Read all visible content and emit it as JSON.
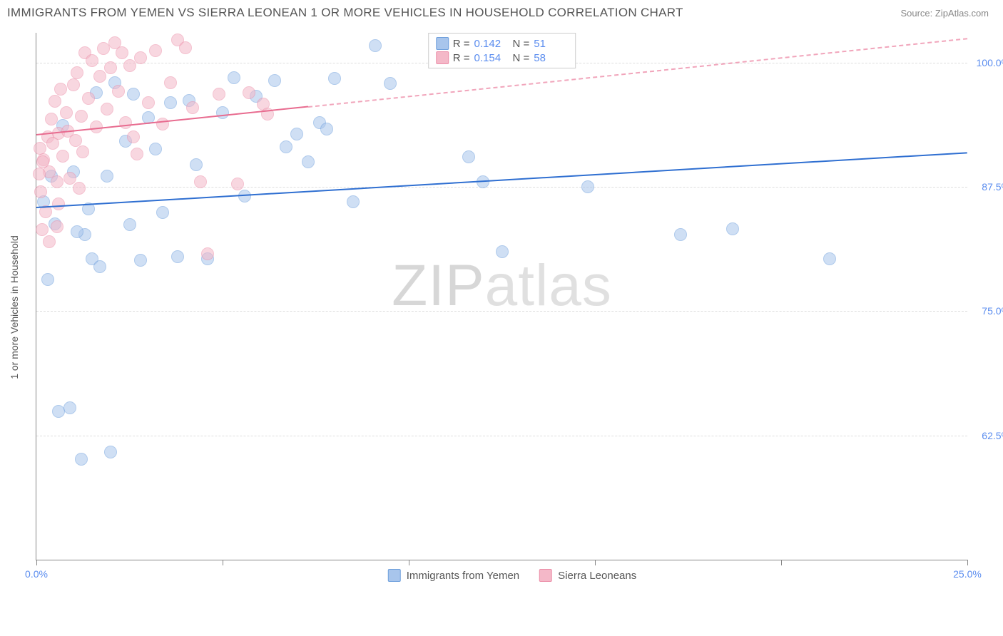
{
  "header": {
    "title": "IMMIGRANTS FROM YEMEN VS SIERRA LEONEAN 1 OR MORE VEHICLES IN HOUSEHOLD CORRELATION CHART",
    "source": "Source: ZipAtlas.com"
  },
  "watermark": {
    "bold": "ZIP",
    "thin": "atlas"
  },
  "chart": {
    "type": "scatter",
    "ylabel": "1 or more Vehicles in Household",
    "xlim": [
      0,
      25
    ],
    "ylim": [
      50,
      103
    ],
    "background_color": "#ffffff",
    "grid_color": "#dddddd",
    "axis_color": "#888888",
    "tick_color": "#5b8def",
    "xticks": [
      0,
      5,
      10,
      15,
      20,
      25
    ],
    "xtick_labels": [
      "0.0%",
      "",
      "",
      "",
      "",
      "25.0%"
    ],
    "yticks": [
      62.5,
      75,
      87.5,
      100
    ],
    "ytick_labels": [
      "62.5%",
      "75.0%",
      "87.5%",
      "100.0%"
    ],
    "point_radius": 9,
    "point_opacity": 0.55,
    "series": [
      {
        "id": "yemen",
        "label": "Immigrants from Yemen",
        "color_fill": "#a8c5ec",
        "color_stroke": "#6fa0dd",
        "r_value": "0.142",
        "n_value": "51",
        "trend": {
          "x1": 0,
          "y1": 85.5,
          "x2": 25,
          "y2": 91.0,
          "color": "#2f6fd1",
          "dashed_after_x": null
        },
        "points": [
          [
            0.2,
            86.0
          ],
          [
            0.3,
            78.2
          ],
          [
            0.5,
            83.8
          ],
          [
            0.6,
            64.9
          ],
          [
            0.7,
            93.7
          ],
          [
            0.9,
            65.3
          ],
          [
            1.0,
            89.0
          ],
          [
            1.2,
            60.1
          ],
          [
            1.3,
            82.7
          ],
          [
            1.4,
            85.3
          ],
          [
            1.5,
            80.3
          ],
          [
            1.6,
            97.0
          ],
          [
            1.7,
            79.5
          ],
          [
            1.9,
            88.6
          ],
          [
            2.0,
            60.8
          ],
          [
            2.1,
            98.0
          ],
          [
            2.4,
            92.1
          ],
          [
            2.5,
            83.7
          ],
          [
            2.6,
            96.8
          ],
          [
            2.8,
            80.1
          ],
          [
            3.0,
            94.5
          ],
          [
            3.2,
            91.3
          ],
          [
            3.4,
            84.9
          ],
          [
            3.6,
            96.0
          ],
          [
            3.8,
            80.5
          ],
          [
            4.1,
            96.2
          ],
          [
            4.3,
            89.7
          ],
          [
            4.6,
            80.3
          ],
          [
            5.0,
            95.0
          ],
          [
            5.3,
            98.5
          ],
          [
            5.6,
            86.6
          ],
          [
            5.9,
            96.6
          ],
          [
            6.4,
            98.2
          ],
          [
            6.7,
            91.5
          ],
          [
            7.0,
            92.8
          ],
          [
            7.3,
            90.0
          ],
          [
            7.6,
            94.0
          ],
          [
            7.8,
            93.3
          ],
          [
            8.0,
            98.4
          ],
          [
            8.5,
            86.0
          ],
          [
            9.1,
            101.7
          ],
          [
            9.5,
            97.9
          ],
          [
            11.6,
            90.5
          ],
          [
            12.0,
            88.0
          ],
          [
            12.5,
            81.0
          ],
          [
            14.8,
            87.5
          ],
          [
            17.3,
            82.7
          ],
          [
            18.7,
            83.3
          ],
          [
            21.3,
            80.3
          ],
          [
            0.4,
            88.6
          ],
          [
            1.1,
            83.0
          ]
        ]
      },
      {
        "id": "sierra",
        "label": "Sierra Leoneans",
        "color_fill": "#f4b8c8",
        "color_stroke": "#ec8fa9",
        "r_value": "0.154",
        "n_value": "58",
        "trend": {
          "x1": 0,
          "y1": 92.8,
          "x2": 25,
          "y2": 102.5,
          "color": "#e86b8f",
          "dashed_after_x": 7.3
        },
        "points": [
          [
            0.1,
            91.4
          ],
          [
            0.2,
            90.2
          ],
          [
            0.3,
            92.5
          ],
          [
            0.35,
            89.0
          ],
          [
            0.4,
            94.3
          ],
          [
            0.45,
            91.9
          ],
          [
            0.5,
            96.1
          ],
          [
            0.55,
            88.0
          ],
          [
            0.6,
            92.9
          ],
          [
            0.65,
            97.3
          ],
          [
            0.7,
            90.6
          ],
          [
            0.8,
            95.0
          ],
          [
            0.85,
            93.1
          ],
          [
            0.9,
            88.4
          ],
          [
            1.0,
            97.8
          ],
          [
            1.05,
            92.2
          ],
          [
            1.1,
            99.0
          ],
          [
            1.2,
            94.6
          ],
          [
            1.25,
            91.0
          ],
          [
            1.3,
            101.0
          ],
          [
            1.4,
            96.4
          ],
          [
            1.5,
            100.2
          ],
          [
            1.6,
            93.5
          ],
          [
            1.7,
            98.6
          ],
          [
            1.8,
            101.4
          ],
          [
            1.9,
            95.3
          ],
          [
            2.0,
            99.5
          ],
          [
            2.1,
            102.0
          ],
          [
            2.2,
            97.1
          ],
          [
            2.3,
            101.0
          ],
          [
            2.4,
            94.0
          ],
          [
            2.5,
            99.7
          ],
          [
            2.6,
            92.5
          ],
          [
            2.8,
            100.5
          ],
          [
            3.0,
            96.0
          ],
          [
            3.2,
            101.2
          ],
          [
            3.4,
            93.8
          ],
          [
            3.6,
            98.0
          ],
          [
            3.8,
            102.3
          ],
          [
            4.0,
            101.5
          ],
          [
            4.2,
            95.5
          ],
          [
            4.4,
            88.0
          ],
          [
            4.6,
            80.8
          ],
          [
            0.25,
            85.0
          ],
          [
            0.15,
            83.2
          ],
          [
            0.35,
            82.0
          ],
          [
            0.12,
            87.0
          ],
          [
            0.6,
            85.8
          ],
          [
            1.15,
            87.4
          ],
          [
            2.7,
            90.8
          ],
          [
            4.9,
            96.8
          ],
          [
            5.4,
            87.8
          ],
          [
            5.7,
            97.0
          ],
          [
            6.1,
            95.8
          ],
          [
            6.2,
            94.8
          ],
          [
            0.08,
            88.8
          ],
          [
            0.18,
            90.0
          ],
          [
            0.55,
            83.5
          ]
        ]
      }
    ],
    "legend_top": {
      "r_label": "R =",
      "n_label": "N ="
    }
  }
}
